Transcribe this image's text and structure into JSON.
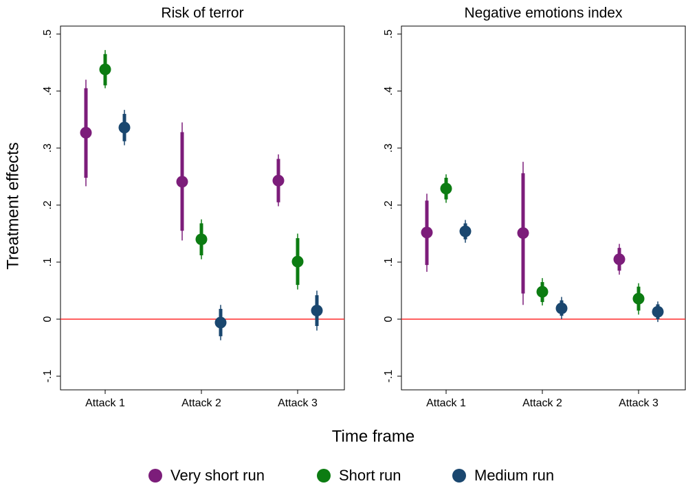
{
  "shared": {
    "ylabel": "Treatment effects",
    "xlabel": "Time frame"
  },
  "chart_data": [
    {
      "type": "coefplot",
      "title": "Risk of terror",
      "categories": [
        "Attack 1",
        "Attack 2",
        "Attack 3"
      ],
      "ylim": [
        -0.124,
        0.514
      ],
      "yticks": [
        {
          "value": -0.1,
          "label": "-.1"
        },
        0,
        {
          "value": 0.1,
          "label": ".1"
        },
        {
          "value": 0.2,
          "label": ".2"
        },
        {
          "value": 0.3,
          "label": ".3"
        },
        {
          "value": 0.4,
          "label": ".4"
        },
        {
          "value": 0.5,
          "label": ".5"
        }
      ],
      "hline": 0,
      "hline_color": "#ff2a2a",
      "series": [
        {
          "name": "Very short run",
          "color": "#7c1d7a",
          "values": [
            0.327,
            0.241,
            0.243
          ],
          "inner": [
            [
              0.248,
              0.405
            ],
            [
              0.155,
              0.328
            ],
            [
              0.205,
              0.281
            ]
          ],
          "outer": [
            [
              0.233,
              0.42
            ],
            [
              0.138,
              0.345
            ],
            [
              0.198,
              0.289
            ]
          ]
        },
        {
          "name": "Short run",
          "color": "#0c7c12",
          "values": [
            0.438,
            0.14,
            0.101
          ],
          "inner": [
            [
              0.41,
              0.465
            ],
            [
              0.112,
              0.168
            ],
            [
              0.06,
              0.142
            ]
          ],
          "outer": [
            [
              0.405,
              0.472
            ],
            [
              0.105,
              0.175
            ],
            [
              0.052,
              0.15
            ]
          ]
        },
        {
          "name": "Medium run",
          "color": "#1a476f",
          "values": [
            0.336,
            -0.006,
            0.015
          ],
          "inner": [
            [
              0.312,
              0.36
            ],
            [
              -0.03,
              0.018
            ],
            [
              -0.012,
              0.042
            ]
          ],
          "outer": [
            [
              0.305,
              0.367
            ],
            [
              -0.037,
              0.025
            ],
            [
              -0.02,
              0.05
            ]
          ]
        }
      ]
    },
    {
      "type": "coefplot",
      "title": "Negative emotions index",
      "categories": [
        "Attack 1",
        "Attack 2",
        "Attack 3"
      ],
      "ylim": [
        -0.124,
        0.514
      ],
      "yticks": [
        {
          "value": -0.1,
          "label": "-.1"
        },
        0,
        {
          "value": 0.1,
          "label": ".1"
        },
        {
          "value": 0.2,
          "label": ".2"
        },
        {
          "value": 0.3,
          "label": ".3"
        },
        {
          "value": 0.4,
          "label": ".4"
        },
        {
          "value": 0.5,
          "label": ".5"
        }
      ],
      "hline": 0,
      "hline_color": "#ff2a2a",
      "series": [
        {
          "name": "Very short run",
          "color": "#7c1d7a",
          "values": [
            0.152,
            0.151,
            0.105
          ],
          "inner": [
            [
              0.095,
              0.208
            ],
            [
              0.045,
              0.256
            ],
            [
              0.085,
              0.125
            ]
          ],
          "outer": [
            [
              0.083,
              0.22
            ],
            [
              0.025,
              0.276
            ],
            [
              0.078,
              0.132
            ]
          ]
        },
        {
          "name": "Short run",
          "color": "#0c7c12",
          "values": [
            0.229,
            0.048,
            0.036
          ],
          "inner": [
            [
              0.21,
              0.248
            ],
            [
              0.03,
              0.065
            ],
            [
              0.015,
              0.057
            ]
          ],
          "outer": [
            [
              0.204,
              0.254
            ],
            [
              0.024,
              0.072
            ],
            [
              0.008,
              0.063
            ]
          ]
        },
        {
          "name": "Medium run",
          "color": "#1a476f",
          "values": [
            0.154,
            0.019,
            0.013
          ],
          "inner": [
            [
              0.14,
              0.168
            ],
            [
              0.006,
              0.033
            ],
            [
              0.0,
              0.026
            ]
          ],
          "outer": [
            [
              0.134,
              0.174
            ],
            [
              0.0,
              0.039
            ],
            [
              -0.005,
              0.031
            ]
          ]
        }
      ]
    }
  ]
}
